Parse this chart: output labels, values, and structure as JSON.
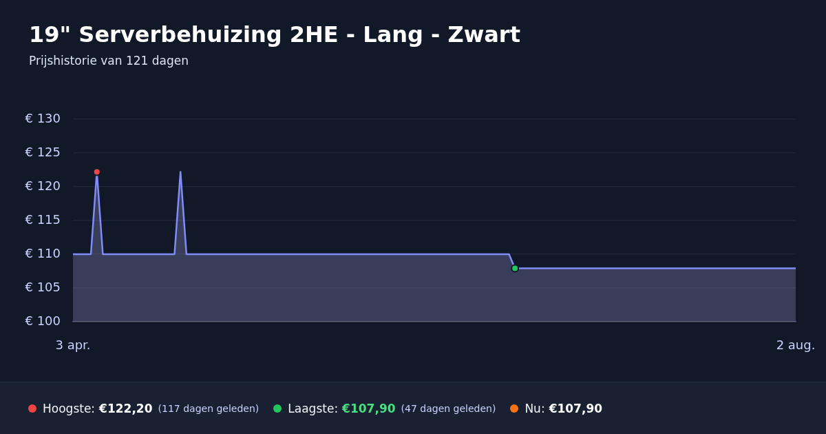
{
  "chart_data": {
    "type": "area",
    "title": "19\" Serverbehuizing 2HE - Lang - Zwart",
    "subtitle": "Prijshistorie van 121 dagen",
    "x": [
      "--04-03",
      "--04-06",
      "--04-07",
      "--04-08",
      "--04-20",
      "--04-21",
      "--04-22",
      "--06-15",
      "--06-16",
      "--08-02"
    ],
    "series": [
      {
        "color": "#818cf8",
        "values": [
          110,
          110,
          122.2,
          110,
          110,
          122.2,
          110,
          110,
          107.9,
          107.9
        ]
      },
      {
        "type": "scatter",
        "x": [
          "--04-07"
        ],
        "values": [
          122.2
        ],
        "color": "#ef4444",
        "marker": "circle"
      },
      {
        "type": "scatter",
        "x": [
          "--06-16"
        ],
        "values": [
          107.9
        ],
        "color": "#22c55e",
        "marker": "circle"
      }
    ],
    "xlim": [
      "--04-03",
      "--08-02"
    ],
    "xticks": [
      {
        "value": "--04-03",
        "label": "3 apr."
      },
      {
        "value": "--08-02",
        "label": "2 aug."
      }
    ],
    "ylim": [
      100,
      130
    ],
    "yticks": [
      {
        "value": 100,
        "label": "€ 100"
      },
      {
        "value": 105,
        "label": "€ 105"
      },
      {
        "value": 110,
        "label": "€ 110"
      },
      {
        "value": 115,
        "label": "€ 115"
      },
      {
        "value": 120,
        "label": "€ 120"
      },
      {
        "value": 125,
        "label": "€ 125"
      },
      {
        "value": 130,
        "label": "€ 130"
      }
    ],
    "grid": "y",
    "annotations": [
      "Hoogste: €122,20 (117 dagen geleden)",
      "Laagste: €107,90 (47 dagen geleden)",
      "Nu: €107,90"
    ]
  }
}
